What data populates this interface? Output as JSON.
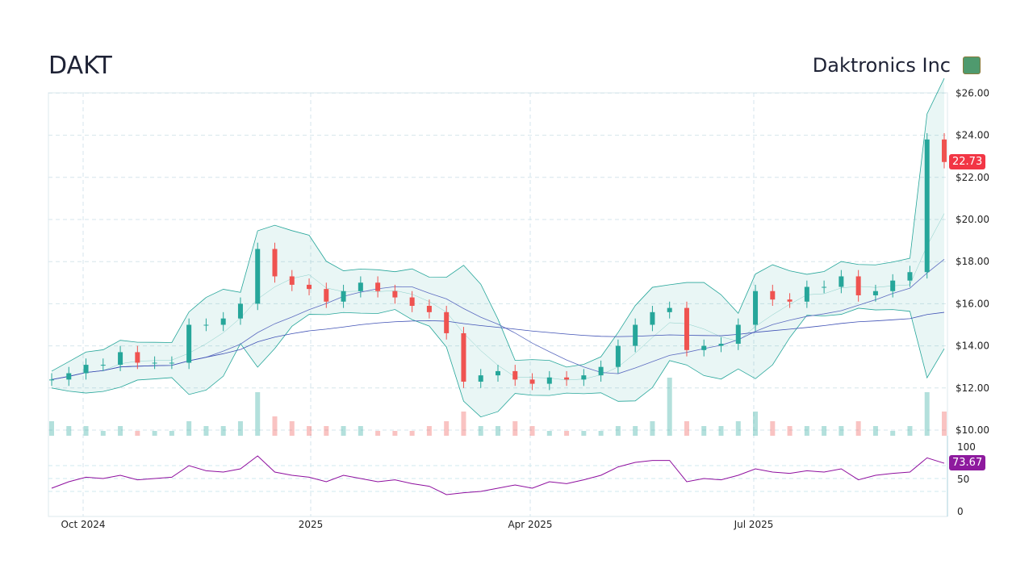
{
  "header": {
    "ticker": "DAKT",
    "company": "Daktronics Inc"
  },
  "colors": {
    "up": "#26a69a",
    "down": "#ef5350",
    "band": "#26a69a",
    "sma_fast": "#5c6bc0",
    "sma_slow": "#3f51b5",
    "rsi": "#8e0e9e",
    "last_price": "#f23645",
    "rsi_badge": "#8e1a9e"
  },
  "chart_data": [
    {
      "type": "candlestick",
      "ylim": [
        10,
        26
      ],
      "y_ticks": [
        "$10.00",
        "$12.00",
        "$14.00",
        "$16.00",
        "$18.00",
        "$20.00",
        "$22.00",
        "$24.00",
        "$26.00"
      ],
      "x_ticks": [
        "Oct 2024",
        "2025",
        "Apr 2025",
        "Jul 2025"
      ],
      "last_price": "22.73",
      "closes": [
        12.4,
        12.7,
        13.1,
        13.1,
        13.7,
        13.2,
        13.2,
        13.2,
        15.0,
        15.0,
        15.3,
        16.0,
        18.6,
        17.3,
        16.9,
        16.7,
        16.1,
        16.6,
        17.0,
        16.6,
        16.3,
        15.9,
        15.6,
        14.6,
        12.3,
        12.6,
        12.8,
        12.4,
        12.2,
        12.5,
        12.4,
        12.6,
        13.0,
        14.0,
        15.0,
        15.6,
        15.8,
        13.8,
        14.0,
        14.1,
        15.0,
        16.6,
        16.2,
        16.1,
        16.8,
        16.8,
        17.3,
        16.4,
        16.6,
        17.1,
        17.5,
        23.8,
        22.73
      ],
      "volume_relative": [
        3,
        2,
        2,
        1,
        2,
        1,
        1,
        1,
        3,
        2,
        2,
        3,
        9,
        4,
        3,
        2,
        2,
        2,
        2,
        1,
        1,
        1,
        2,
        3,
        5,
        2,
        2,
        3,
        2,
        1,
        1,
        1,
        1,
        2,
        2,
        3,
        12,
        3,
        2,
        2,
        3,
        5,
        3,
        2,
        2,
        2,
        2,
        3,
        2,
        1,
        2,
        9,
        5
      ],
      "indicators": [
        "Bollinger Bands",
        "SMA",
        "SMA"
      ]
    },
    {
      "type": "line",
      "name": "RSI",
      "ylim": [
        0,
        100
      ],
      "y_ticks": [
        "0",
        "50",
        "100"
      ],
      "last_value": "73.67",
      "values": [
        35,
        45,
        52,
        50,
        55,
        48,
        50,
        52,
        70,
        62,
        60,
        65,
        85,
        60,
        55,
        52,
        45,
        55,
        50,
        45,
        48,
        42,
        38,
        25,
        28,
        30,
        35,
        40,
        35,
        45,
        42,
        48,
        55,
        68,
        75,
        78,
        78,
        45,
        50,
        48,
        55,
        65,
        60,
        58,
        62,
        60,
        65,
        48,
        55,
        58,
        60,
        82,
        73.67
      ]
    }
  ]
}
